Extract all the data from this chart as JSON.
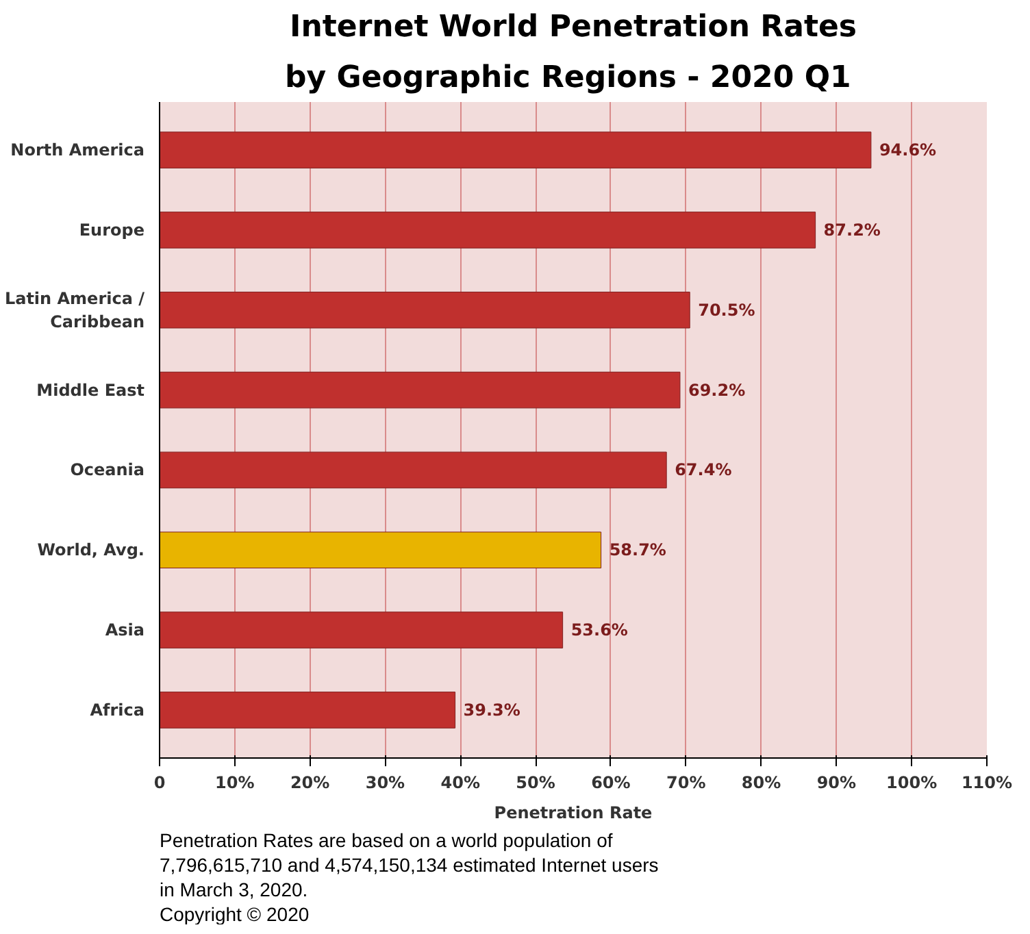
{
  "chart_data": {
    "type": "bar",
    "orientation": "horizontal",
    "title": "Internet World Penetration Rates",
    "subtitle": "by Geographic Regions -  2020 Q1",
    "xlabel": "Penetration Rate",
    "categories": [
      "North America",
      "Europe",
      "Latin America / Caribbean",
      "Middle East",
      "Oceania",
      "World, Avg.",
      "Asia",
      "Africa"
    ],
    "values": [
      94.6,
      87.2,
      70.5,
      69.2,
      67.4,
      58.7,
      53.6,
      39.3
    ],
    "colors": [
      "#c0302e",
      "#c0302e",
      "#c0302e",
      "#c0302e",
      "#c0302e",
      "#e8b400",
      "#c0302e",
      "#c0302e"
    ],
    "value_labels": [
      "94.6%",
      "87.2%",
      "70.5%",
      "69.2%",
      "67.4%",
      "58.7%",
      "53.6%",
      "39.3%"
    ],
    "xlim": [
      0,
      110
    ],
    "xticks": [
      0,
      {
        "value": 10,
        "label": "10%"
      },
      {
        "value": 20,
        "label": "20%"
      },
      {
        "value": 30,
        "label": "30%"
      },
      {
        "value": 40,
        "label": "40%"
      },
      {
        "value": 50,
        "label": "50%"
      },
      {
        "value": 60,
        "label": "60%"
      },
      {
        "value": 70,
        "label": "70%"
      },
      {
        "value": 80,
        "label": "80%"
      },
      {
        "value": 90,
        "label": "90%"
      },
      {
        "value": 100,
        "label": "100%"
      },
      {
        "value": 110,
        "label": "110%"
      }
    ],
    "grid": "x",
    "annotations": [
      "Penetration Rates are based on a world population of 7,796,615,710 and 4,574,150,134 estimated Internet users in March 3, 2020.",
      "Copyright © 2020"
    ]
  }
}
